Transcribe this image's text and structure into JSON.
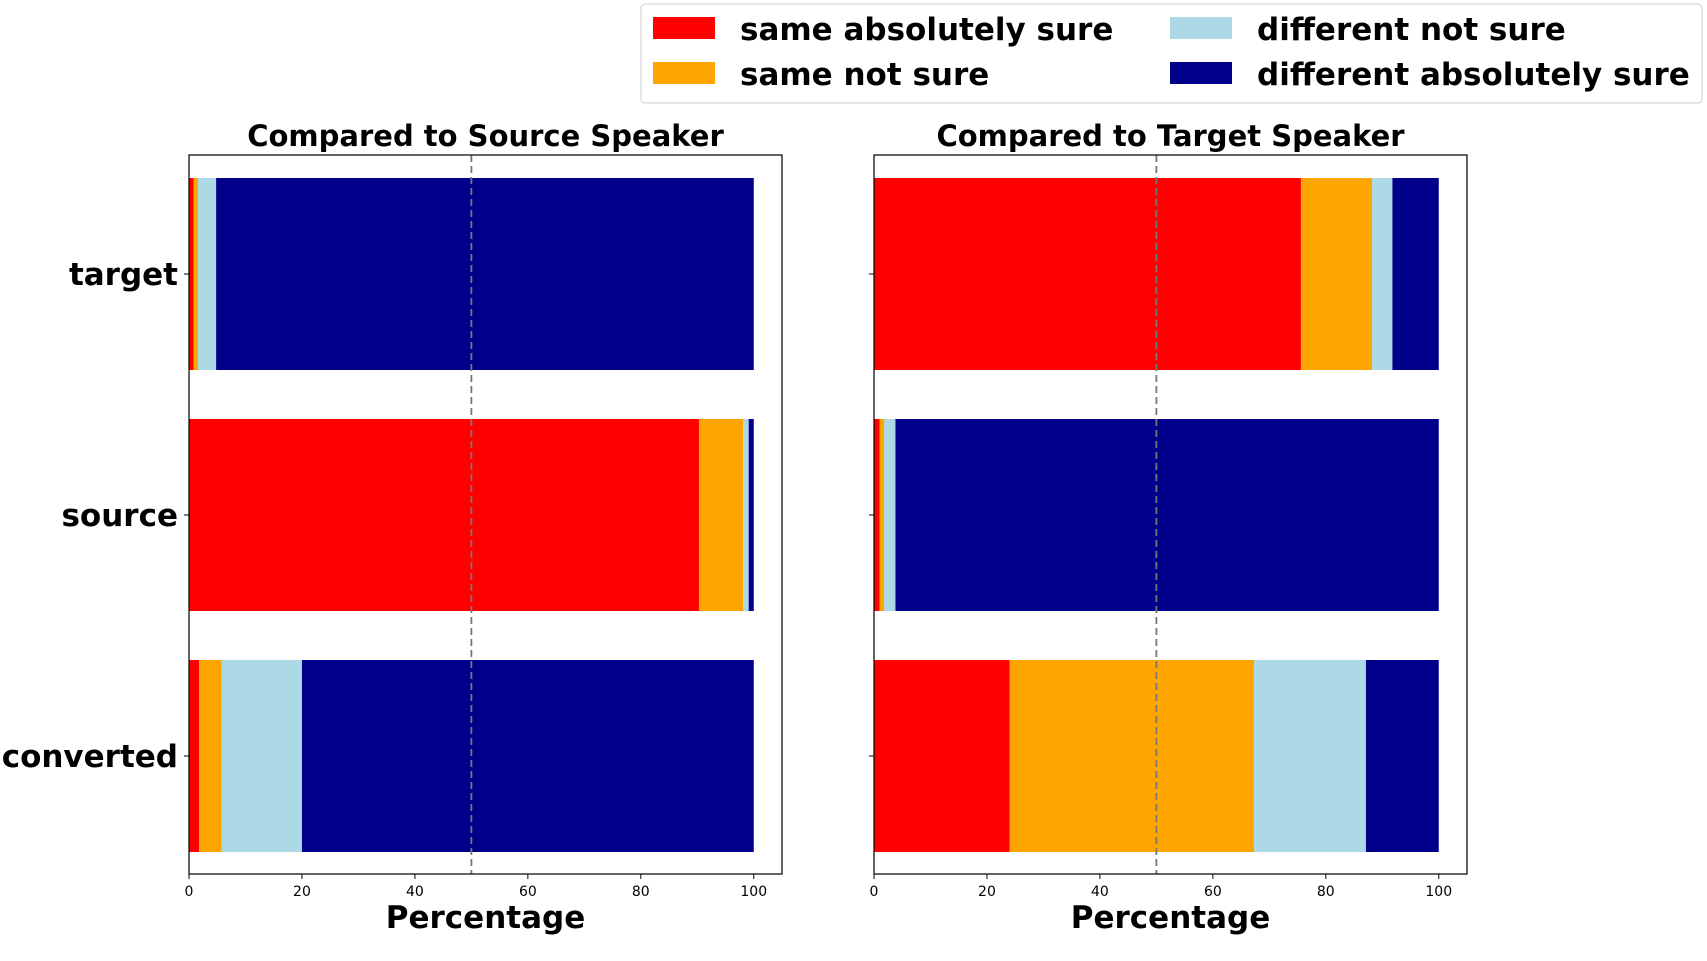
{
  "chart_data": {
    "type": "bar",
    "orientation": "horizontal",
    "stacked": true,
    "legend": {
      "placement": "top-right",
      "entries": [
        {
          "key": "same_abs",
          "label": "same absolutely sure",
          "color": "#ff0000"
        },
        {
          "key": "same_not",
          "label": "same not sure",
          "color": "#ffa500"
        },
        {
          "key": "diff_not",
          "label": "different not sure",
          "color": "#add8e6"
        },
        {
          "key": "diff_abs",
          "label": "different absolutely sure",
          "color": "#00008b"
        }
      ]
    },
    "categories": [
      "target",
      "source",
      "converted"
    ],
    "reference_line": 50,
    "panels": [
      {
        "title": "Compared to Source Speaker",
        "xlabel": "Percentage",
        "xlim": [
          0,
          105
        ],
        "xticks": [
          "0",
          "20",
          "40",
          "60",
          "80",
          "100"
        ],
        "show_category_labels": true,
        "series": [
          {
            "key": "same_abs",
            "values": [
              0.8,
              90.3,
              1.8
            ]
          },
          {
            "key": "same_not",
            "values": [
              0.8,
              7.8,
              4.0
            ]
          },
          {
            "key": "diff_not",
            "values": [
              3.2,
              1.0,
              14.2
            ]
          },
          {
            "key": "diff_abs",
            "values": [
              95.2,
              0.9,
              80.0
            ]
          }
        ]
      },
      {
        "title": "Compared to Target Speaker",
        "xlabel": "Percentage",
        "xlim": [
          0,
          105
        ],
        "xticks": [
          "0",
          "20",
          "40",
          "60",
          "80",
          "100"
        ],
        "show_category_labels": false,
        "series": [
          {
            "key": "same_abs",
            "values": [
              75.6,
              1.0,
              24.0
            ]
          },
          {
            "key": "same_not",
            "values": [
              12.6,
              0.8,
              43.3
            ]
          },
          {
            "key": "diff_not",
            "values": [
              3.6,
              2.0,
              19.8
            ]
          },
          {
            "key": "diff_abs",
            "values": [
              8.2,
              96.2,
              12.9
            ]
          }
        ]
      }
    ]
  }
}
